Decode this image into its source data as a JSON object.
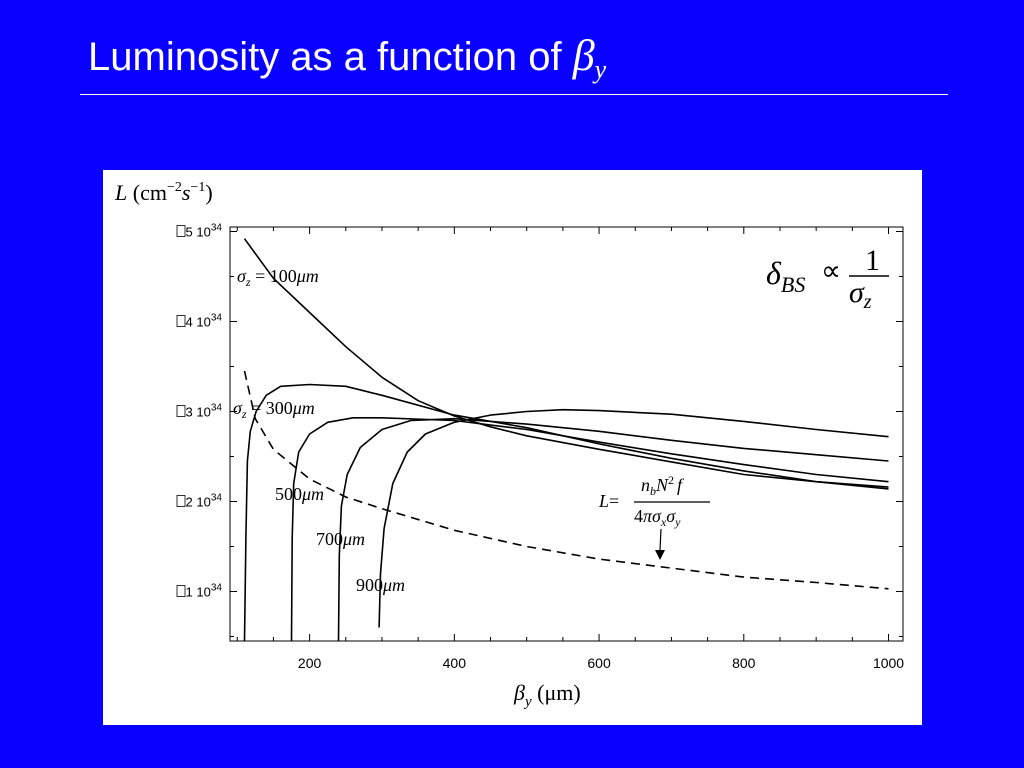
{
  "slide": {
    "title_text": "Luminosity as a function of ",
    "title_symbol": "β",
    "title_subscript": "y"
  },
  "colors": {
    "background": "#0A00FF",
    "panel": "#FFFFFF",
    "ink": "#000000"
  },
  "chart_data": {
    "type": "line",
    "ylabel": {
      "symbol": "L",
      "unit_open": " (cm",
      "exp1": "−2",
      "mid": "s",
      "exp2": "−1",
      "unit_close": ")"
    },
    "xlabel": {
      "symbol": "β",
      "sub": "y",
      "unit": " (μm)"
    },
    "xlim": [
      90,
      1020
    ],
    "ylim": [
      0.45,
      5.05
    ],
    "y_scale_note": "×10^34 cm^-2 s^-1",
    "x_ticks": [
      200,
      400,
      600,
      800,
      1000
    ],
    "x_tick_labels": [
      "200",
      "400",
      "600",
      "800",
      "1000"
    ],
    "y_ticks": [
      1,
      2,
      3,
      4,
      5
    ],
    "y_tick_labels": [
      {
        "mant": "1",
        "sym": "",
        "base": "10",
        "exp": "34"
      },
      {
        "mant": "2",
        "sym": "",
        "base": "10",
        "exp": "34"
      },
      {
        "mant": "3",
        "sym": "",
        "base": "10",
        "exp": "34"
      },
      {
        "mant": "4",
        "sym": "",
        "base": "10",
        "exp": "34"
      },
      {
        "mant": "5",
        "sym": "",
        "base": "10",
        "exp": "34"
      }
    ],
    "grid": false,
    "series": [
      {
        "name": "σz = 100 μm",
        "style": "solid",
        "points": [
          [
            110,
            4.92
          ],
          [
            150,
            4.48
          ],
          [
            200,
            4.1
          ],
          [
            250,
            3.72
          ],
          [
            300,
            3.38
          ],
          [
            350,
            3.12
          ],
          [
            400,
            2.95
          ],
          [
            450,
            2.83
          ],
          [
            500,
            2.73
          ],
          [
            600,
            2.58
          ],
          [
            700,
            2.44
          ],
          [
            800,
            2.3
          ],
          [
            900,
            2.22
          ],
          [
            1000,
            2.16
          ]
        ]
      },
      {
        "name": "σz = 300 μm",
        "style": "solid",
        "points": [
          [
            110,
            0.45
          ],
          [
            112,
            1.6
          ],
          [
            114,
            2.45
          ],
          [
            118,
            2.78
          ],
          [
            126,
            3.0
          ],
          [
            140,
            3.18
          ],
          [
            160,
            3.28
          ],
          [
            200,
            3.3
          ],
          [
            250,
            3.28
          ],
          [
            300,
            3.18
          ],
          [
            400,
            2.96
          ],
          [
            500,
            2.82
          ],
          [
            600,
            2.64
          ],
          [
            700,
            2.48
          ],
          [
            800,
            2.34
          ],
          [
            900,
            2.22
          ],
          [
            1000,
            2.14
          ]
        ]
      },
      {
        "name": "σz = 500 μm",
        "style": "solid",
        "points": [
          [
            175,
            0.45
          ],
          [
            176,
            1.6
          ],
          [
            178,
            2.2
          ],
          [
            185,
            2.55
          ],
          [
            200,
            2.75
          ],
          [
            225,
            2.88
          ],
          [
            260,
            2.93
          ],
          [
            300,
            2.93
          ],
          [
            400,
            2.9
          ],
          [
            500,
            2.8
          ],
          [
            600,
            2.66
          ],
          [
            700,
            2.53
          ],
          [
            800,
            2.41
          ],
          [
            900,
            2.3
          ],
          [
            1000,
            2.22
          ]
        ]
      },
      {
        "name": "σz = 700 μm",
        "style": "solid",
        "points": [
          [
            240,
            0.45
          ],
          [
            241,
            1.4
          ],
          [
            244,
            1.95
          ],
          [
            252,
            2.3
          ],
          [
            270,
            2.6
          ],
          [
            300,
            2.8
          ],
          [
            340,
            2.9
          ],
          [
            400,
            2.92
          ],
          [
            500,
            2.86
          ],
          [
            600,
            2.78
          ],
          [
            700,
            2.68
          ],
          [
            800,
            2.59
          ],
          [
            900,
            2.52
          ],
          [
            1000,
            2.45
          ]
        ]
      },
      {
        "name": "σz = 900 μm",
        "style": "solid",
        "points": [
          [
            296,
            0.6
          ],
          [
            298,
            1.2
          ],
          [
            303,
            1.7
          ],
          [
            315,
            2.2
          ],
          [
            335,
            2.55
          ],
          [
            360,
            2.75
          ],
          [
            400,
            2.88
          ],
          [
            450,
            2.96
          ],
          [
            500,
            3.0
          ],
          [
            550,
            3.02
          ],
          [
            600,
            3.01
          ],
          [
            700,
            2.97
          ],
          [
            800,
            2.89
          ],
          [
            900,
            2.8
          ],
          [
            1000,
            2.72
          ]
        ]
      },
      {
        "name": "L (4πσxσy)",
        "style": "dashed",
        "points": [
          [
            110,
            3.45
          ],
          [
            125,
            2.92
          ],
          [
            150,
            2.58
          ],
          [
            200,
            2.25
          ],
          [
            250,
            2.05
          ],
          [
            300,
            1.92
          ],
          [
            400,
            1.68
          ],
          [
            500,
            1.5
          ],
          [
            600,
            1.36
          ],
          [
            700,
            1.26
          ],
          [
            800,
            1.16
          ],
          [
            900,
            1.1
          ],
          [
            1000,
            1.03
          ]
        ]
      }
    ],
    "annotations": {
      "label_sigma100": {
        "sym": "σ",
        "sub": "z",
        "eq": " = ",
        "num": "100",
        "mu": "μ",
        "m": "m"
      },
      "label_sigma300": {
        "sym": "σ",
        "sub": "z",
        "eq": " = ",
        "num": "300",
        "mu": "μ",
        "m": "m"
      },
      "label_500": {
        "num": "500",
        "mu": "μ",
        "m": "m"
      },
      "label_700": {
        "num": "700",
        "mu": "μ",
        "m": "m"
      },
      "label_900": {
        "num": "900",
        "mu": "μ",
        "m": "m"
      },
      "formula_beamstrahlung": {
        "delta": "δ",
        "delta_sub": "BS",
        "prop": "∝",
        "numerator": "1",
        "den_sym": "σ",
        "den_sub": "z"
      },
      "formula_luminosity": {
        "lhs": "L",
        "eq": "=",
        "n": "n",
        "n_sub": "b",
        "N": "N",
        "N_exp": "2",
        "f": "f",
        "four": "4",
        "pi": "π",
        "sx": "σ",
        "sx_sub": "x",
        "sy": "σ",
        "sy_sub": "y"
      }
    }
  }
}
